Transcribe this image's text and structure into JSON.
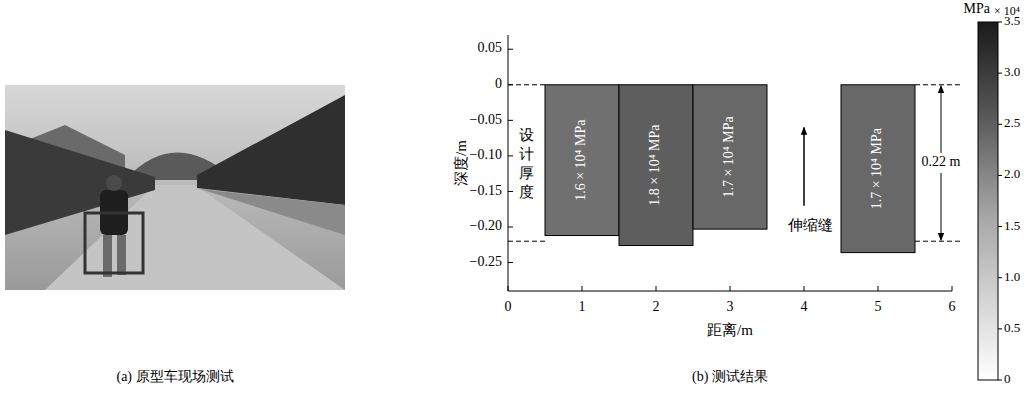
{
  "photo": {
    "caption": "(a) 原型车现场测试"
  },
  "chart_data": {
    "type": "bar",
    "caption": "(b) 测试结果",
    "x_label": "距离/m",
    "y_label": "深度/m",
    "x_start": [
      0.5,
      1.5,
      2.5,
      4.5
    ],
    "x_end": [
      1.5,
      2.5,
      3.5,
      5.5
    ],
    "values": [
      -0.212,
      -0.226,
      -0.203,
      -0.236
    ],
    "modulus": [
      16000,
      18000,
      17000,
      17000
    ],
    "modulus_labels": [
      "1.6 × 10⁴ MPa",
      "1.8 × 10⁴ MPa",
      "1.7 × 10⁴ MPa",
      "1.7 × 10⁴ MPa"
    ],
    "colors": [
      "#707070",
      "#5e5e5e",
      "#686868",
      "#686868"
    ],
    "xlim": [
      0,
      6
    ],
    "xticks": [
      0,
      1,
      2,
      3,
      4,
      5,
      6
    ],
    "ylim": [
      -0.29,
      0.07
    ],
    "yticks": [
      {
        "value": -0.25,
        "label": "−0.25"
      },
      {
        "value": -0.2,
        "label": "−0.20"
      },
      {
        "value": -0.15,
        "label": "−0.15"
      },
      {
        "value": -0.1,
        "label": "−0.10"
      },
      {
        "value": -0.05,
        "label": "−0.05"
      },
      0,
      0.05
    ],
    "design_depth": -0.22,
    "design_label": "设计厚度",
    "design_thickness_label": "0.22 m",
    "joint_x": 4,
    "joint_label": "伸缩缝",
    "colorbar": {
      "unit_label": "MPa",
      "multiplier_label": "× 10⁴",
      "range": [
        0,
        35000
      ],
      "ticks": [
        {
          "value": 0,
          "label": "0"
        },
        {
          "value": 5000,
          "label": "0.5"
        },
        {
          "value": 10000,
          "label": "1.0"
        },
        {
          "value": 15000,
          "label": "1.5"
        },
        {
          "value": 20000,
          "label": "2.0"
        },
        {
          "value": 25000,
          "label": "2.5"
        },
        {
          "value": 30000,
          "label": "3.0"
        },
        {
          "value": 35000,
          "label": "3.5"
        }
      ]
    }
  }
}
